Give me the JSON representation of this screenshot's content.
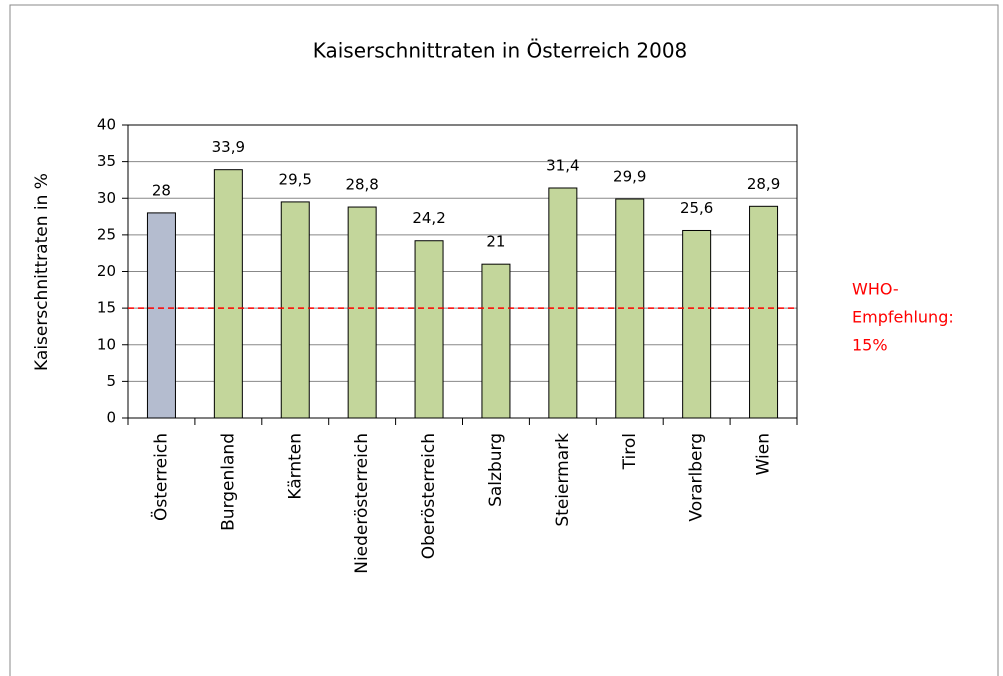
{
  "chart_data": {
    "type": "bar",
    "title": "Kaiserschnittraten in Österreich 2008",
    "y_label": "Kaiserschnittraten in %",
    "categories": [
      "Österreich",
      "Burgenland",
      "Kärnten",
      "Niederösterreich",
      "Oberösterreich",
      "Salzburg",
      "Steiermark",
      "Tirol",
      "Vorarlberg",
      "Wien"
    ],
    "values": [
      28,
      33.9,
      29.5,
      28.8,
      24.2,
      21,
      31.4,
      29.9,
      25.6,
      28.9
    ],
    "value_labels": [
      "28",
      "33,9",
      "29,5",
      "28,8",
      "24,2",
      "21",
      "31,4",
      "29,9",
      "25,6",
      "28,9"
    ],
    "colors": [
      "#b4bccf",
      "#c3d69b",
      "#c3d69b",
      "#c3d69b",
      "#c3d69b",
      "#c3d69b",
      "#c3d69b",
      "#c3d69b",
      "#c3d69b",
      "#c3d69b"
    ],
    "ylim": [
      0,
      40
    ],
    "yticks": [
      0,
      5,
      10,
      15,
      20,
      25,
      30,
      35,
      40
    ],
    "grid": true,
    "reference_line": {
      "value": 15,
      "color": "#ff0000",
      "label": [
        "WHO-",
        "Empfehlung:",
        "15%"
      ]
    }
  }
}
